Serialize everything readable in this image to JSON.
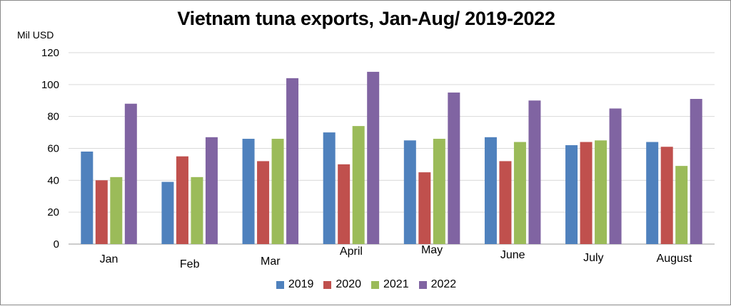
{
  "chart_data": {
    "type": "bar",
    "title": "Vietnam tuna exports, Jan-Aug/ 2019-2022",
    "ylabel": "Mil USD",
    "xlabel": "",
    "ylim": [
      0,
      120
    ],
    "yticks": [
      "0",
      "20",
      "40",
      "60",
      "80",
      "100",
      "120"
    ],
    "grid": true,
    "legend_position": "bottom",
    "categories": [
      "Jan",
      "Feb",
      "Mar",
      "April",
      "May",
      "June",
      "July",
      "August"
    ],
    "series": [
      {
        "name": "2019",
        "color": "#4f81bd",
        "values": [
          58,
          39,
          66,
          70,
          65,
          67,
          62,
          64
        ]
      },
      {
        "name": "2020",
        "color": "#c0504d",
        "values": [
          40,
          55,
          52,
          50,
          45,
          52,
          64,
          61
        ]
      },
      {
        "name": "2021",
        "color": "#9bbb59",
        "values": [
          42,
          42,
          66,
          74,
          66,
          64,
          65,
          49
        ]
      },
      {
        "name": "2022",
        "color": "#8064a2",
        "values": [
          88,
          67,
          104,
          108,
          95,
          90,
          85,
          91
        ]
      }
    ]
  }
}
